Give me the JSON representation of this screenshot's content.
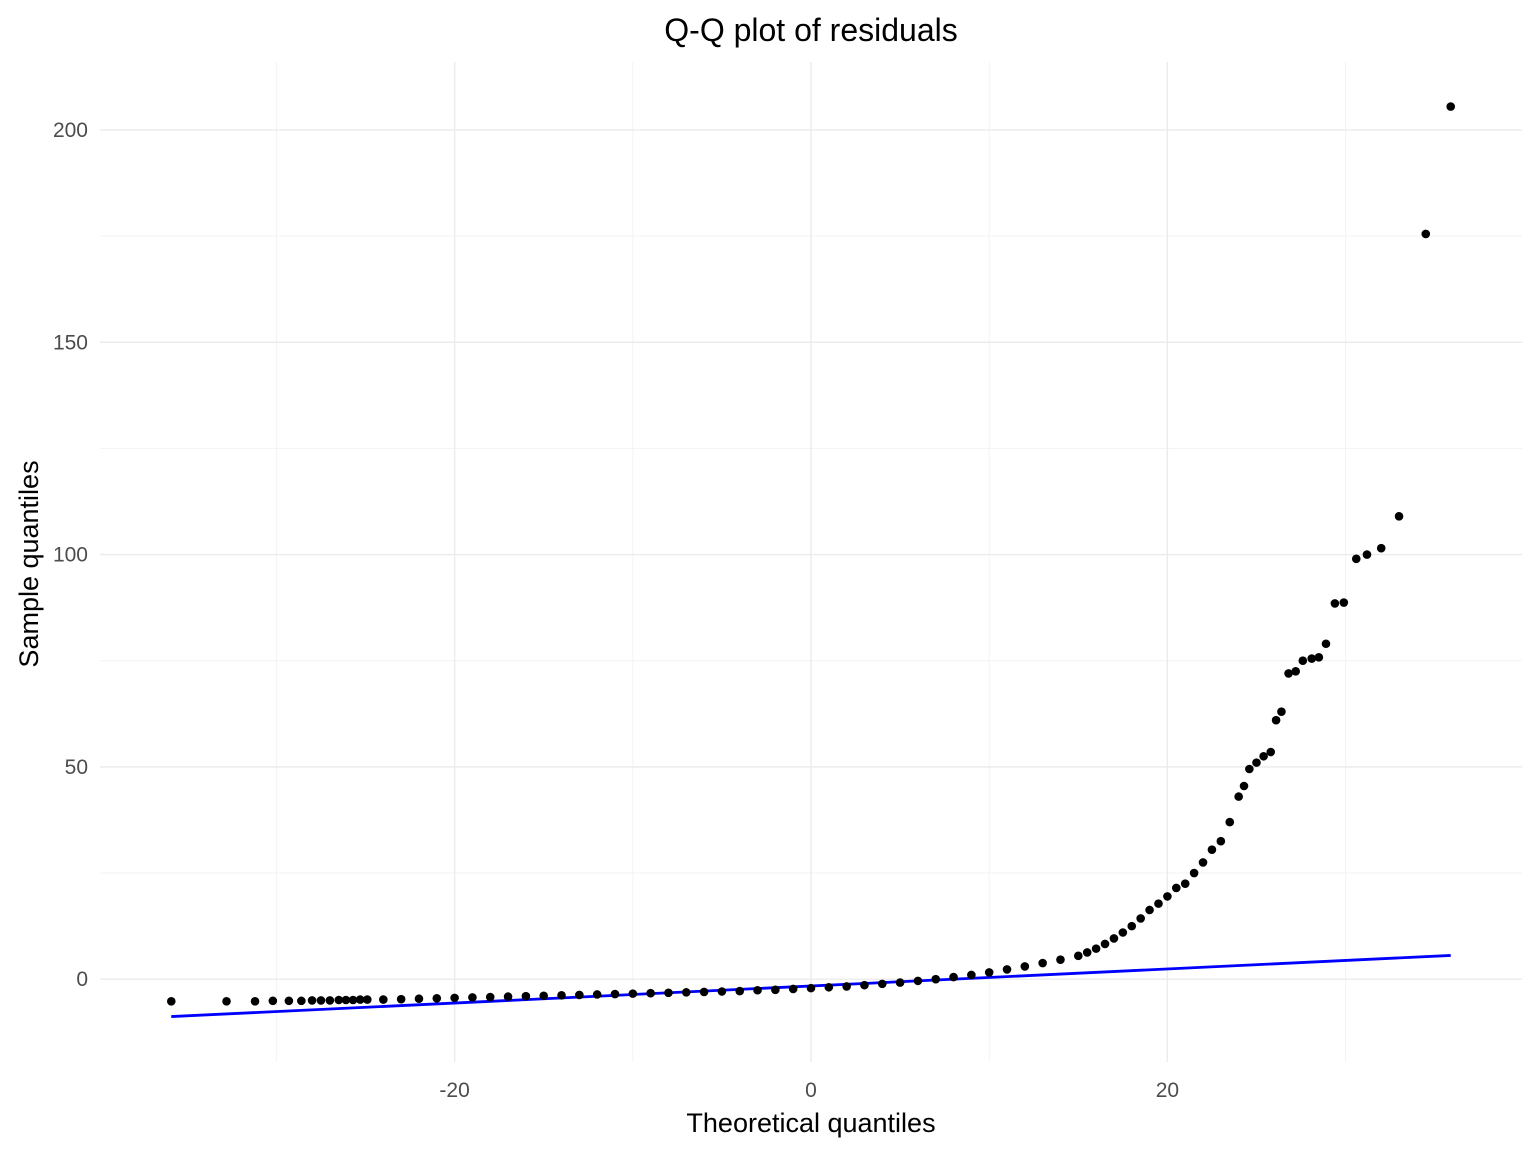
{
  "chart_data": {
    "type": "scatter",
    "title": "Q-Q plot of residuals",
    "xlabel": "Theoretical quantiles",
    "ylabel": "Sample quantiles",
    "xlim": [
      -39.9,
      39.9
    ],
    "ylim": [
      -19.5,
      216
    ],
    "x_ticks": [
      -20,
      0,
      20
    ],
    "x_tick_labels": [
      "-20",
      "0",
      "20"
    ],
    "y_ticks": [
      0,
      50,
      100,
      150,
      200
    ],
    "y_tick_labels": [
      "0",
      "50",
      "100",
      "150",
      "200"
    ],
    "x_minor_ticks": [
      -30,
      -10,
      10,
      30
    ],
    "y_minor_ticks": [
      25,
      75,
      125,
      175
    ],
    "grid": true,
    "legend": "none",
    "colors": {
      "points": "#000000",
      "reference_line": "#0000ff",
      "grid": "#ebebeb",
      "tick_text": "#4d4d4d"
    },
    "reference_line": {
      "x": [
        -35.9,
        35.9
      ],
      "y": [
        -8.8,
        5.6
      ]
    },
    "series": [
      {
        "points": [
          [
            -35.9,
            -5.2
          ],
          [
            -32.8,
            -5.2
          ],
          [
            -31.2,
            -5.2
          ],
          [
            -30.2,
            -5.1
          ],
          [
            -29.3,
            -5.1
          ],
          [
            -28.6,
            -5.1
          ],
          [
            -28.0,
            -5.0
          ],
          [
            -27.5,
            -5.0
          ],
          [
            -27.0,
            -5.0
          ],
          [
            -26.5,
            -4.9
          ],
          [
            -26.1,
            -4.9
          ],
          [
            -25.7,
            -4.9
          ],
          [
            -25.3,
            -4.8
          ],
          [
            -24.9,
            -4.8
          ],
          [
            -24.0,
            -4.8
          ],
          [
            -23.0,
            -4.7
          ],
          [
            -22.0,
            -4.6
          ],
          [
            -21.0,
            -4.5
          ],
          [
            -20.0,
            -4.4
          ],
          [
            -19.0,
            -4.3
          ],
          [
            -18.0,
            -4.2
          ],
          [
            -17.0,
            -4.1
          ],
          [
            -16.0,
            -4.0
          ],
          [
            -15.0,
            -3.9
          ],
          [
            -14.0,
            -3.8
          ],
          [
            -13.0,
            -3.7
          ],
          [
            -12.0,
            -3.6
          ],
          [
            -11.0,
            -3.5
          ],
          [
            -10.0,
            -3.4
          ],
          [
            -9.0,
            -3.3
          ],
          [
            -8.0,
            -3.2
          ],
          [
            -7.0,
            -3.1
          ],
          [
            -6.0,
            -3.0
          ],
          [
            -5.0,
            -2.9
          ],
          [
            -4.0,
            -2.8
          ],
          [
            -3.0,
            -2.6
          ],
          [
            -2.0,
            -2.5
          ],
          [
            -1.0,
            -2.3
          ],
          [
            0.0,
            -2.1
          ],
          [
            1.0,
            -1.9
          ],
          [
            2.0,
            -1.7
          ],
          [
            3.0,
            -1.4
          ],
          [
            4.0,
            -1.1
          ],
          [
            5.0,
            -0.8
          ],
          [
            6.0,
            -0.4
          ],
          [
            7.0,
            0.0
          ],
          [
            8.0,
            0.5
          ],
          [
            9.0,
            1.0
          ],
          [
            10.0,
            1.6
          ],
          [
            11.0,
            2.3
          ],
          [
            12.0,
            3.0
          ],
          [
            13.0,
            3.8
          ],
          [
            14.0,
            4.6
          ],
          [
            15.0,
            5.5
          ],
          [
            15.5,
            6.3
          ],
          [
            16.0,
            7.2
          ],
          [
            16.5,
            8.3
          ],
          [
            17.0,
            9.6
          ],
          [
            17.5,
            11.0
          ],
          [
            18.0,
            12.5
          ],
          [
            18.5,
            14.3
          ],
          [
            19.0,
            16.3
          ],
          [
            19.5,
            17.8
          ],
          [
            20.0,
            19.5
          ],
          [
            20.5,
            21.5
          ],
          [
            21.0,
            22.5
          ],
          [
            21.5,
            25.0
          ],
          [
            22.0,
            27.5
          ],
          [
            22.5,
            30.5
          ],
          [
            23.0,
            32.5
          ],
          [
            23.5,
            37.0
          ],
          [
            24.0,
            43.0
          ],
          [
            24.3,
            45.5
          ],
          [
            24.6,
            49.5
          ],
          [
            25.0,
            51.0
          ],
          [
            25.4,
            52.5
          ],
          [
            25.8,
            53.5
          ],
          [
            26.1,
            61.0
          ],
          [
            26.4,
            63.0
          ],
          [
            26.8,
            72.0
          ],
          [
            27.2,
            72.5
          ],
          [
            27.6,
            75.0
          ],
          [
            28.1,
            75.5
          ],
          [
            28.5,
            75.8
          ],
          [
            28.9,
            79.0
          ],
          [
            29.4,
            88.5
          ],
          [
            29.9,
            88.7
          ],
          [
            30.6,
            99.0
          ],
          [
            31.2,
            100.0
          ],
          [
            32.0,
            101.5
          ],
          [
            33.0,
            109.0
          ],
          [
            34.5,
            175.5
          ],
          [
            35.9,
            205.5
          ]
        ]
      }
    ]
  }
}
